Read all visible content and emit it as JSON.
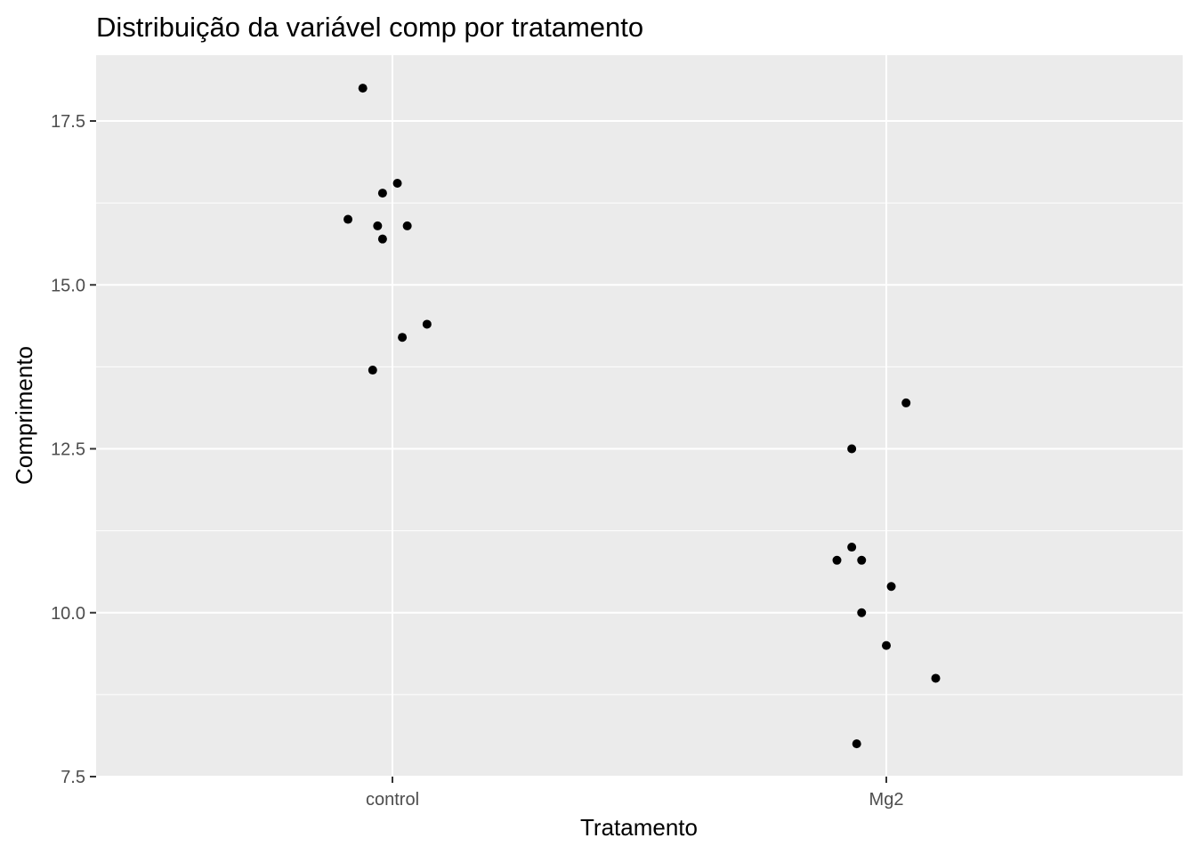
{
  "chart_data": {
    "type": "scatter",
    "title": "Distribuição da variável comp por tratamento",
    "xlabel": "Tratamento",
    "ylabel": "Comprimento",
    "categories": [
      "control",
      "Mg2"
    ],
    "y_ticks": [
      "7.5",
      "10.0",
      "12.5",
      "15.0",
      "17.5"
    ],
    "ylim": [
      7.5,
      18.5
    ],
    "grid": true,
    "panel_background": "#ebebeb",
    "grid_color": "#ffffff",
    "point_color": "#000000",
    "series": [
      {
        "points": [
          {
            "x": "control",
            "jitter": -0.06,
            "y": 18.0
          },
          {
            "x": "control",
            "jitter": 0.01,
            "y": 16.55
          },
          {
            "x": "control",
            "jitter": -0.02,
            "y": 16.4
          },
          {
            "x": "control",
            "jitter": -0.09,
            "y": 16.0
          },
          {
            "x": "control",
            "jitter": -0.03,
            "y": 15.9
          },
          {
            "x": "control",
            "jitter": 0.03,
            "y": 15.9
          },
          {
            "x": "control",
            "jitter": -0.02,
            "y": 15.7
          },
          {
            "x": "control",
            "jitter": 0.07,
            "y": 14.4
          },
          {
            "x": "control",
            "jitter": 0.02,
            "y": 14.2
          },
          {
            "x": "control",
            "jitter": -0.04,
            "y": 13.7
          },
          {
            "x": "Mg2",
            "jitter": 0.04,
            "y": 13.2
          },
          {
            "x": "Mg2",
            "jitter": -0.07,
            "y": 12.5
          },
          {
            "x": "Mg2",
            "jitter": -0.07,
            "y": 11.0
          },
          {
            "x": "Mg2",
            "jitter": -0.1,
            "y": 10.8
          },
          {
            "x": "Mg2",
            "jitter": -0.05,
            "y": 10.8
          },
          {
            "x": "Mg2",
            "jitter": 0.01,
            "y": 10.4
          },
          {
            "x": "Mg2",
            "jitter": -0.05,
            "y": 10.0
          },
          {
            "x": "Mg2",
            "jitter": 0.0,
            "y": 9.5
          },
          {
            "x": "Mg2",
            "jitter": 0.1,
            "y": 9.0
          },
          {
            "x": "Mg2",
            "jitter": -0.06,
            "y": 8.0
          }
        ]
      }
    ]
  }
}
